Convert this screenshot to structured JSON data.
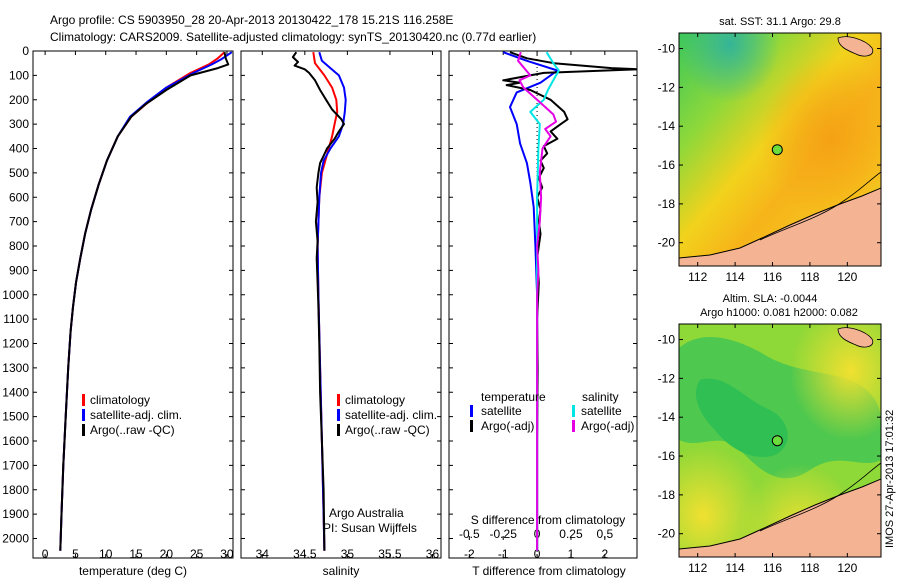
{
  "header": {
    "line1": "Argo profile: CS 5903950_28 20-Apr-2013 20130422_178 15.21S 116.258E",
    "line2": "Climatology: CARS2009. Satellite-adjusted climatology: synTS_20130420.nc (0.77d earlier)"
  },
  "colors": {
    "climatology": "#ff0000",
    "satellite_adj": "#0000ff",
    "argo": "#000000",
    "salinity_satellite": "#00e5e5",
    "salinity_argo": "#e600e6",
    "land": "#f4b494",
    "marker": "#6cdc3c"
  },
  "chart_data": [
    {
      "id": "temperature",
      "type": "line",
      "xlabel": "temperature (deg C)",
      "ylabel": "depth",
      "xlim": [
        -2,
        31
      ],
      "ylim": [
        2080,
        0
      ],
      "xticks": [
        0,
        5,
        10,
        15,
        20,
        25,
        30
      ],
      "yticks": [
        0,
        100,
        200,
        300,
        400,
        500,
        600,
        700,
        800,
        900,
        1000,
        1100,
        1200,
        1300,
        1400,
        1500,
        1600,
        1700,
        1800,
        1900,
        2000
      ],
      "legend": [
        "climatology",
        "satellite-adj. clim.",
        "Argo(..raw -QC)"
      ],
      "series": [
        {
          "name": "climatology",
          "color": "#ff0000",
          "points": [
            [
              29.6,
              5
            ],
            [
              28.5,
              30
            ],
            [
              27,
              55
            ],
            [
              24,
              90
            ],
            [
              20,
              150
            ],
            [
              17,
              210
            ],
            [
              14.2,
              270
            ],
            [
              12,
              350
            ],
            [
              10.2,
              450
            ],
            [
              8.8,
              550
            ],
            [
              7.6,
              650
            ],
            [
              6.6,
              750
            ],
            [
              5.8,
              850
            ],
            [
              5.1,
              950
            ],
            [
              4.6,
              1050
            ],
            [
              4.2,
              1150
            ],
            [
              3.8,
              1300
            ],
            [
              3.4,
              1500
            ],
            [
              3.0,
              1700
            ],
            [
              2.7,
              1900
            ],
            [
              2.5,
              2050
            ]
          ]
        },
        {
          "name": "satellite-adj. clim.",
          "color": "#0000ff",
          "points": [
            [
              30.8,
              5
            ],
            [
              29,
              35
            ],
            [
              27.5,
              55
            ],
            [
              24.5,
              90
            ],
            [
              20,
              150
            ],
            [
              16.8,
              210
            ],
            [
              14,
              270
            ],
            [
              12,
              350
            ],
            [
              10.2,
              450
            ],
            [
              8.8,
              550
            ],
            [
              7.6,
              650
            ],
            [
              6.6,
              750
            ],
            [
              5.8,
              850
            ],
            [
              5.1,
              950
            ],
            [
              4.6,
              1050
            ],
            [
              4.2,
              1150
            ],
            [
              3.8,
              1300
            ],
            [
              3.4,
              1500
            ],
            [
              3.0,
              1700
            ],
            [
              2.7,
              1900
            ],
            [
              2.5,
              2050
            ]
          ]
        },
        {
          "name": "Argo(..raw -QC)",
          "color": "#000000",
          "points": [
            [
              29.6,
              5
            ],
            [
              29.8,
              30
            ],
            [
              30.2,
              55
            ],
            [
              28.5,
              70
            ],
            [
              24,
              100
            ],
            [
              20,
              160
            ],
            [
              16.5,
              220
            ],
            [
              14.2,
              270
            ],
            [
              12,
              350
            ],
            [
              10.2,
              450
            ],
            [
              8.8,
              550
            ],
            [
              7.6,
              650
            ],
            [
              6.6,
              750
            ],
            [
              5.8,
              850
            ],
            [
              5.1,
              950
            ],
            [
              4.6,
              1050
            ],
            [
              4.2,
              1150
            ],
            [
              3.8,
              1300
            ],
            [
              3.4,
              1500
            ],
            [
              3.0,
              1700
            ],
            [
              2.7,
              1900
            ],
            [
              2.5,
              2050
            ]
          ]
        }
      ]
    },
    {
      "id": "salinity",
      "type": "line",
      "xlabel": "salinity",
      "xlim": [
        33.75,
        36.1
      ],
      "ylim": [
        2080,
        0
      ],
      "xticks": [
        34,
        34.5,
        35,
        35.5,
        36
      ],
      "legend": [
        "climatology",
        "satellite-adj. clim.",
        "Argo(..raw -QC)"
      ],
      "annotation": [
        "Argo Australia",
        "PI: Susan Wijffels"
      ],
      "series": [
        {
          "name": "climatology",
          "color": "#ff0000",
          "points": [
            [
              34.6,
              5
            ],
            [
              34.62,
              50
            ],
            [
              34.73,
              100
            ],
            [
              34.82,
              150
            ],
            [
              34.87,
              200
            ],
            [
              34.88,
              250
            ],
            [
              34.85,
              300
            ],
            [
              34.82,
              350
            ],
            [
              34.78,
              400
            ],
            [
              34.74,
              450
            ],
            [
              34.7,
              500
            ],
            [
              34.67,
              600
            ],
            [
              34.65,
              800
            ],
            [
              34.66,
              1000
            ],
            [
              34.68,
              1300
            ],
            [
              34.7,
              1600
            ],
            [
              34.72,
              1900
            ],
            [
              34.73,
              2050
            ]
          ]
        },
        {
          "name": "satellite-adj. clim.",
          "color": "#0000ff",
          "points": [
            [
              34.67,
              5
            ],
            [
              34.7,
              40
            ],
            [
              34.8,
              70
            ],
            [
              34.9,
              100
            ],
            [
              34.96,
              150
            ],
            [
              34.98,
              200
            ],
            [
              34.97,
              250
            ],
            [
              34.95,
              300
            ],
            [
              34.9,
              350
            ],
            [
              34.8,
              400
            ],
            [
              34.72,
              450
            ],
            [
              34.69,
              500
            ],
            [
              34.67,
              600
            ],
            [
              34.65,
              800
            ],
            [
              34.66,
              1000
            ],
            [
              34.68,
              1300
            ],
            [
              34.7,
              1600
            ],
            [
              34.72,
              1900
            ],
            [
              34.73,
              2050
            ]
          ]
        },
        {
          "name": "Argo(..raw -QC)",
          "color": "#000000",
          "points": [
            [
              34.4,
              5
            ],
            [
              34.36,
              25
            ],
            [
              34.42,
              45
            ],
            [
              34.38,
              60
            ],
            [
              34.5,
              75
            ],
            [
              34.55,
              90
            ],
            [
              34.62,
              120
            ],
            [
              34.68,
              160
            ],
            [
              34.75,
              200
            ],
            [
              34.82,
              240
            ],
            [
              34.93,
              280
            ],
            [
              34.96,
              300
            ],
            [
              34.9,
              330
            ],
            [
              34.85,
              360
            ],
            [
              34.76,
              400
            ],
            [
              34.72,
              430
            ],
            [
              34.68,
              460
            ],
            [
              34.66,
              500
            ],
            [
              34.64,
              560
            ],
            [
              34.65,
              620
            ],
            [
              34.63,
              700
            ],
            [
              34.65,
              780
            ],
            [
              34.64,
              850
            ],
            [
              34.65,
              950
            ],
            [
              34.66,
              1050
            ],
            [
              34.67,
              1200
            ],
            [
              34.68,
              1400
            ],
            [
              34.7,
              1600
            ],
            [
              34.72,
              1800
            ],
            [
              34.73,
              2050
            ]
          ]
        }
      ]
    },
    {
      "id": "difference",
      "type": "line",
      "xlabel": "T difference from climatology",
      "xlabel_top": "S difference from climatology",
      "xlim": [
        -2.6,
        2.95
      ],
      "ylim": [
        2080,
        0
      ],
      "xticks": [
        -2,
        -1,
        0,
        1,
        2
      ],
      "xticks_top": [
        -0.5,
        -0.25,
        0,
        0.25,
        0.5
      ],
      "legend_temperature": [
        "temperature",
        "satellite",
        "Argo(-adj)"
      ],
      "legend_salinity": [
        "salinity",
        "satellite",
        "Argo(-adj)"
      ],
      "series": [
        {
          "name": "temperature satellite",
          "color": "#0000ff",
          "points": [
            [
              -1.0,
              5
            ],
            [
              -0.3,
              40
            ],
            [
              0.6,
              80
            ],
            [
              0.1,
              130
            ],
            [
              -0.6,
              170
            ],
            [
              -0.8,
              230
            ],
            [
              -0.6,
              300
            ],
            [
              -0.5,
              380
            ],
            [
              -0.3,
              460
            ],
            [
              -0.2,
              540
            ],
            [
              -0.1,
              640
            ],
            [
              -0.05,
              800
            ],
            [
              0,
              1000
            ],
            [
              0,
              1300
            ],
            [
              0,
              1600
            ],
            [
              0,
              1900
            ],
            [
              0,
              2050
            ]
          ]
        },
        {
          "name": "temperature Argo(-adj)",
          "color": "#000000",
          "points": [
            [
              -0.8,
              5
            ],
            [
              -0.3,
              30
            ],
            [
              0.5,
              50
            ],
            [
              2.2,
              70
            ],
            [
              3.0,
              75
            ],
            [
              0.2,
              90
            ],
            [
              -1.0,
              120
            ],
            [
              -0.5,
              130
            ],
            [
              -0.9,
              140
            ],
            [
              -0.2,
              160
            ],
            [
              0.4,
              200
            ],
            [
              0.8,
              250
            ],
            [
              0.9,
              280
            ],
            [
              0.7,
              300
            ],
            [
              0.4,
              330
            ],
            [
              0.6,
              360
            ],
            [
              0.2,
              390
            ],
            [
              0.3,
              420
            ],
            [
              0.1,
              450
            ],
            [
              0.2,
              480
            ],
            [
              0.05,
              520
            ],
            [
              0.15,
              560
            ],
            [
              0.0,
              600
            ],
            [
              0.1,
              650
            ],
            [
              0.05,
              700
            ],
            [
              0.1,
              750
            ],
            [
              0.0,
              850
            ],
            [
              0.05,
              950
            ],
            [
              0.0,
              1100
            ],
            [
              0.02,
              1300
            ],
            [
              0.0,
              1600
            ],
            [
              0.0,
              2050
            ]
          ]
        },
        {
          "name": "salinity satellite",
          "color": "#00e5e5",
          "points": [
            [
              0.07,
              5
            ],
            [
              0.12,
              50
            ],
            [
              0.16,
              80
            ],
            [
              0.12,
              120
            ],
            [
              0.08,
              160
            ],
            [
              0.05,
              200
            ],
            [
              -0.05,
              250
            ],
            [
              0.02,
              300
            ],
            [
              0.01,
              400
            ],
            [
              0.0,
              600
            ],
            [
              0.0,
              2050
            ]
          ]
        },
        {
          "name": "salinity Argo(-adj)",
          "color": "#e600e6",
          "points": [
            [
              -0.12,
              5
            ],
            [
              -0.14,
              40
            ],
            [
              -0.05,
              100
            ],
            [
              -0.13,
              120
            ],
            [
              -0.1,
              150
            ],
            [
              0.0,
              200
            ],
            [
              0.12,
              260
            ],
            [
              0.14,
              290
            ],
            [
              0.06,
              320
            ],
            [
              0.1,
              350
            ],
            [
              0.04,
              400
            ],
            [
              0.02,
              500
            ],
            [
              0.03,
              600
            ],
            [
              0.02,
              700
            ],
            [
              0.0,
              800
            ],
            [
              0.01,
              900
            ],
            [
              0.0,
              1000
            ],
            [
              0.0,
              2050
            ]
          ]
        }
      ]
    },
    {
      "id": "sst_map",
      "type": "heatmap",
      "title": "sat. SST: 31.1  Argo: 29.8",
      "xlim": [
        111,
        121.8
      ],
      "ylim": [
        -21.2,
        -9.2
      ],
      "xticks": [
        112,
        114,
        116,
        118,
        120
      ],
      "yticks": [
        -10,
        -12,
        -14,
        -16,
        -18,
        -20
      ],
      "marker": {
        "lon": 116.258,
        "lat": -15.21
      }
    },
    {
      "id": "sla_map",
      "type": "heatmap",
      "title_line1": "Altim. SLA: -0.0044",
      "title_line2": "Argo h1000: 0.081  h2000: 0.082",
      "xlim": [
        111,
        121.8
      ],
      "ylim": [
        -21.2,
        -9.2
      ],
      "xticks": [
        112,
        114,
        116,
        118,
        120
      ],
      "yticks": [
        -10,
        -12,
        -14,
        -16,
        -18,
        -20
      ],
      "marker": {
        "lon": 116.258,
        "lat": -15.21
      }
    }
  ],
  "footer": {
    "stamp": "IMOS 27-Apr-2013 17:01:32"
  }
}
